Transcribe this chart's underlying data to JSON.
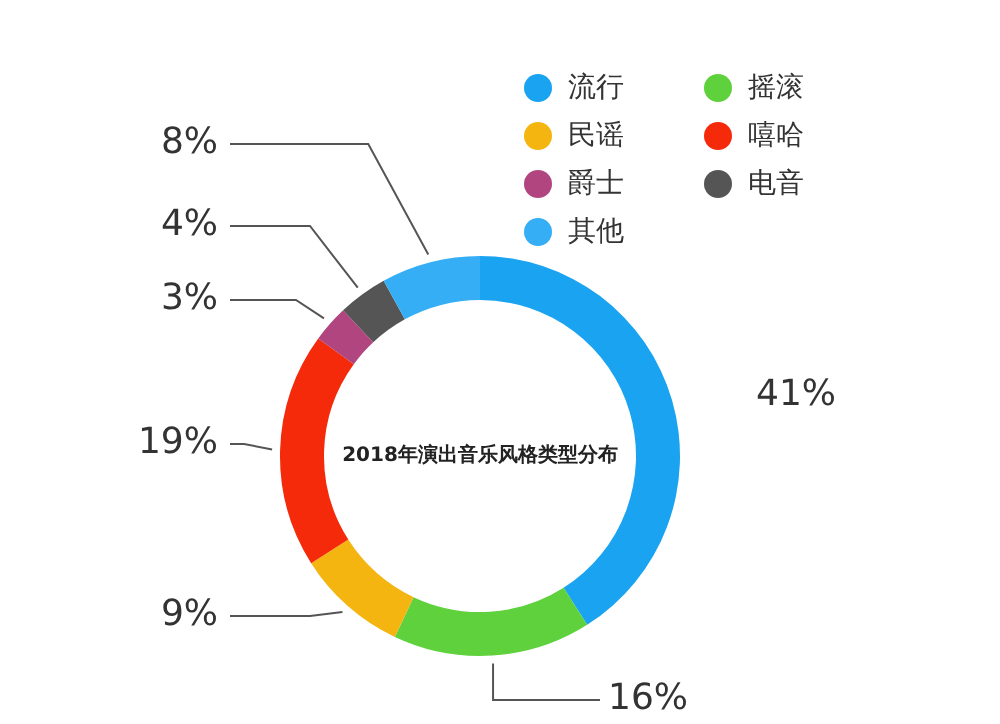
{
  "chart_data": {
    "type": "donut",
    "title": "2018年演出音乐风格类型分布",
    "categories": [
      "流行",
      "摇滚",
      "民谣",
      "嘻哈",
      "爵士",
      "电音",
      "其他"
    ],
    "values": [
      41,
      16,
      9,
      19,
      3,
      4,
      8
    ],
    "colors": [
      "#1aa3f0",
      "#5fd13c",
      "#f5b511",
      "#f42a0a",
      "#b0457f",
      "#555555",
      "#35aef5"
    ],
    "value_labels": [
      "41%",
      "16%",
      "9%",
      "19%",
      "3%",
      "4%",
      "8%"
    ],
    "legend": "top right"
  }
}
